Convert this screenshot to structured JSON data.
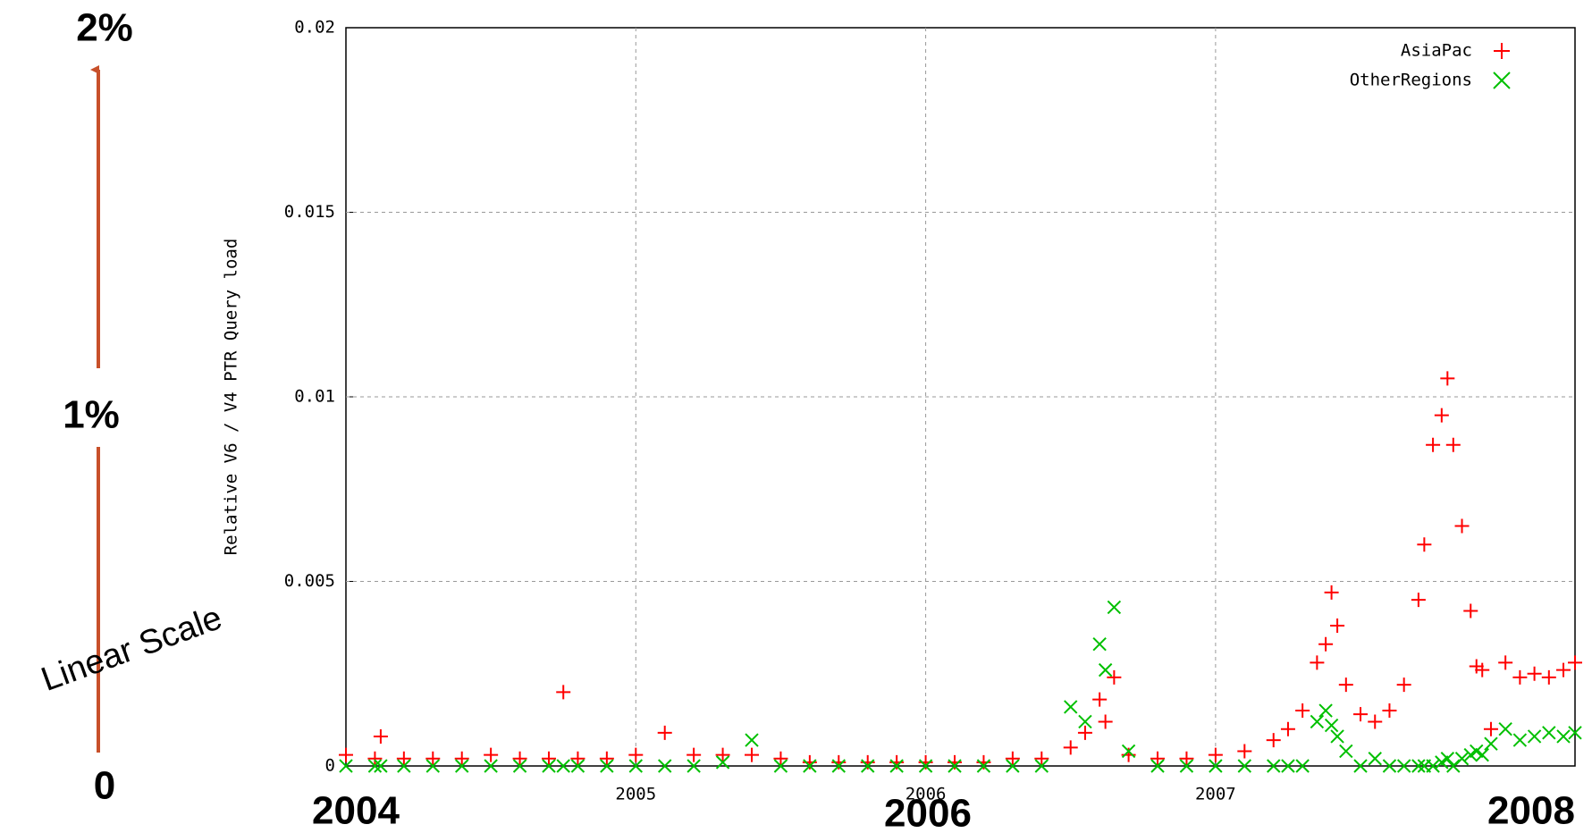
{
  "chart_data": {
    "type": "scatter",
    "y_label": "Relative V6 / V4 PTR Query load",
    "annotations": [
      "2%",
      "1%",
      "0",
      "Linear Scale",
      "2004",
      "2006",
      "2008"
    ],
    "xlim": [
      2004,
      2008.24
    ],
    "xticks": [
      2005,
      2006,
      2007
    ],
    "ylim": [
      0,
      0.02
    ],
    "yticks": [
      0,
      0.005,
      0.01,
      0.015,
      0.02
    ],
    "grid": true,
    "legend": "upper right",
    "x": [
      2004.0,
      2004.1,
      2004.12,
      2004.2,
      2004.3,
      2004.4,
      2004.5,
      2004.6,
      2004.7,
      2004.75,
      2004.8,
      2004.9,
      2005.0,
      2005.1,
      2005.2,
      2005.3,
      2005.4,
      2005.5,
      2005.6,
      2005.7,
      2005.8,
      2005.9,
      2006.0,
      2006.1,
      2006.2,
      2006.3,
      2006.4,
      2006.5,
      2006.55,
      2006.6,
      2006.62,
      2006.65,
      2006.7,
      2006.8,
      2006.9,
      2007.0,
      2007.1,
      2007.2,
      2007.25,
      2007.3,
      2007.35,
      2007.38,
      2007.4,
      2007.42,
      2007.45,
      2007.5,
      2007.55,
      2007.6,
      2007.65,
      2007.7,
      2007.72,
      2007.75,
      2007.78,
      2007.8,
      2007.82,
      2007.85,
      2007.88,
      2007.9,
      2007.92,
      2007.95,
      2008.0,
      2008.05,
      2008.1,
      2008.15,
      2008.2,
      2008.24
    ],
    "series": [
      {
        "name": "AsiaPac",
        "color": "#ff0000",
        "marker": "plus",
        "values": [
          0.0003,
          0.0002,
          0.0008,
          0.0002,
          0.0002,
          0.0002,
          0.0003,
          0.0002,
          0.0002,
          0.002,
          0.0002,
          0.0002,
          0.0003,
          0.0009,
          0.0003,
          0.0003,
          0.0003,
          0.0002,
          0.0001,
          0.0001,
          0.0001,
          0.0001,
          0.0001,
          0.0001,
          0.0001,
          0.0002,
          0.0002,
          0.0005,
          0.0009,
          0.0018,
          0.0012,
          0.0024,
          0.0003,
          0.0002,
          0.0002,
          0.0003,
          0.0004,
          0.0007,
          0.001,
          0.0015,
          0.0028,
          0.0033,
          0.0047,
          0.0038,
          0.0022,
          0.0014,
          0.0012,
          0.0015,
          0.0022,
          0.0045,
          0.006,
          0.0087,
          0.0095,
          0.0105,
          0.0087,
          0.0065,
          0.0042,
          0.0027,
          0.0026,
          0.001,
          0.0028,
          0.0024,
          0.0025,
          0.0024,
          0.0026,
          0.0028
        ]
      },
      {
        "name": "OtherRegions",
        "color": "#00c000",
        "marker": "cross",
        "values": [
          0,
          0,
          0,
          0,
          0,
          0,
          0,
          0,
          0,
          0,
          0,
          0,
          0,
          0,
          0,
          0.0001,
          0.0007,
          0,
          0,
          0,
          0,
          0,
          0,
          0,
          0,
          0,
          0,
          0.0016,
          0.0012,
          0.0033,
          0.0026,
          0.0043,
          0.0004,
          0,
          0,
          0,
          0,
          0,
          0,
          0,
          0.0012,
          0.0015,
          0.0011,
          0.0008,
          0.0004,
          0,
          0.0002,
          0,
          0,
          0,
          0,
          0,
          0.0001,
          0.0002,
          0,
          0.0002,
          0.0003,
          0.0004,
          0.0003,
          0.0006,
          0.001,
          0.0007,
          0.0008,
          0.0009,
          0.0008,
          0.0009
        ]
      }
    ]
  }
}
